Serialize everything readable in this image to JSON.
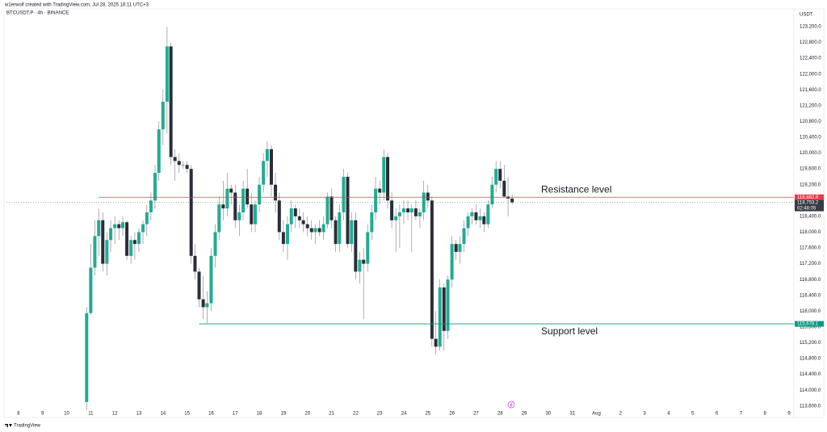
{
  "header": {
    "attribution": "w1erwolf created with TradingView.com, Jul 28, 2025 16:11 UTC+3",
    "symbol": "BTCUSDT.P · 4h · BINANCE",
    "currency": "USDT"
  },
  "footer": {
    "brand": "TradingView"
  },
  "chart_data": {
    "type": "candlestick",
    "x": [
      10.83,
      11,
      11.17,
      11.33,
      11.5,
      11.67,
      11.83,
      12,
      12.17,
      12.33,
      12.5,
      12.67,
      12.83,
      13,
      13.17,
      13.33,
      13.5,
      13.67,
      13.83,
      14,
      14.17,
      14.33,
      14.5,
      14.67,
      14.83,
      15,
      15.17,
      15.33,
      15.5,
      15.67,
      15.83,
      16,
      16.17,
      16.33,
      16.5,
      16.67,
      16.83,
      17,
      17.17,
      17.33,
      17.5,
      17.67,
      17.83,
      18,
      18.17,
      18.33,
      18.5,
      18.67,
      18.83,
      19,
      19.17,
      19.33,
      19.5,
      19.67,
      19.83,
      20,
      20.17,
      20.33,
      20.5,
      20.67,
      20.83,
      21,
      21.17,
      21.33,
      21.5,
      21.67,
      21.83,
      22,
      22.17,
      22.33,
      22.5,
      22.67,
      22.83,
      23,
      23.17,
      23.33,
      23.5,
      23.67,
      23.83,
      24,
      24.17,
      24.33,
      24.5,
      24.67,
      24.83,
      25,
      25.17,
      25.33,
      25.5,
      25.67,
      25.83,
      26,
      26.17,
      26.33,
      26.5,
      26.67,
      26.83,
      27,
      27.17,
      27.33,
      27.5,
      27.67,
      27.83,
      28,
      28.17,
      28.33,
      28.5
    ],
    "open": [
      113700,
      115950,
      117100,
      117900,
      118300,
      117200,
      117800,
      118100,
      118200,
      118100,
      118250,
      117400,
      117800,
      117700,
      118000,
      118200,
      118500,
      118800,
      119500,
      120600,
      121300,
      122700,
      119900,
      119800,
      119700,
      119700,
      119600,
      117400,
      117000,
      116300,
      116100,
      116200,
      117400,
      118000,
      118700,
      118600,
      119100,
      119000,
      118300,
      118500,
      119100,
      118700,
      118200,
      118700,
      119200,
      119800,
      120100,
      119200,
      118800,
      118000,
      117700,
      118200,
      118600,
      118400,
      118300,
      118200,
      118100,
      118000,
      118100,
      118000,
      118200,
      118900,
      118300,
      117700,
      118500,
      119400,
      117700,
      118300,
      117000,
      117300,
      117200,
      118000,
      118500,
      119100,
      119000,
      119900,
      118800,
      118300,
      118400,
      118500,
      118600,
      118500,
      118600,
      118400,
      118500,
      119000,
      118800,
      115300,
      115100,
      116600,
      115500,
      116800,
      117700,
      117500,
      117700,
      118100,
      118400,
      118500,
      118300,
      118400,
      118200,
      118700,
      119200,
      119600,
      119300,
      118900,
      118850
    ],
    "high": [
      116100,
      117700,
      118300,
      118600,
      118500,
      118000,
      118300,
      118400,
      118300,
      118400,
      118300,
      117900,
      118000,
      118100,
      118300,
      118700,
      119000,
      119700,
      120800,
      121600,
      123200,
      122800,
      120100,
      120000,
      119800,
      119800,
      119700,
      117700,
      117100,
      116900,
      116500,
      117600,
      118200,
      118900,
      119300,
      119500,
      119200,
      119200,
      118700,
      119300,
      119600,
      119000,
      118800,
      119400,
      120000,
      120300,
      120200,
      119500,
      119000,
      118300,
      118400,
      118800,
      118700,
      118600,
      118500,
      118400,
      118300,
      118200,
      118300,
      118400,
      119000,
      119100,
      118400,
      118700,
      119600,
      119500,
      118500,
      118500,
      117500,
      117600,
      118200,
      118700,
      119400,
      119300,
      120100,
      120000,
      119000,
      118600,
      118700,
      118800,
      118800,
      118700,
      118800,
      118600,
      119300,
      119200,
      118900,
      116000,
      116800,
      116700,
      116900,
      117900,
      117800,
      117900,
      118300,
      118500,
      118600,
      118700,
      118600,
      118500,
      118800,
      119400,
      119800,
      119800,
      119700,
      119400,
      118950
    ],
    "low": [
      113500,
      115900,
      116900,
      117400,
      117000,
      116900,
      117500,
      117700,
      117800,
      117900,
      117300,
      117200,
      117300,
      117500,
      117700,
      117900,
      118300,
      118600,
      119300,
      120200,
      120500,
      119700,
      119300,
      119500,
      119600,
      119500,
      117200,
      116800,
      116100,
      115800,
      115700,
      116000,
      117100,
      117800,
      118300,
      118400,
      118700,
      118100,
      117900,
      118300,
      118600,
      118000,
      118000,
      118500,
      119000,
      119400,
      118900,
      118500,
      117800,
      117500,
      117300,
      118000,
      118100,
      118100,
      118000,
      117900,
      117800,
      117700,
      117900,
      117800,
      118100,
      118100,
      117500,
      117500,
      118300,
      117600,
      117500,
      116800,
      116700,
      115800,
      117000,
      117800,
      118300,
      118700,
      118800,
      118600,
      118100,
      117500,
      117600,
      118200,
      118300,
      117500,
      118300,
      118100,
      118300,
      118600,
      115100,
      114900,
      115000,
      115000,
      115300,
      116600,
      117300,
      117200,
      117500,
      117900,
      118200,
      118200,
      118100,
      118000,
      118100,
      118600,
      119000,
      119100,
      118900,
      118400,
      118700
    ],
    "close": [
      115950,
      117100,
      117900,
      118300,
      117200,
      117800,
      118100,
      118200,
      118100,
      118250,
      117400,
      117800,
      117700,
      118000,
      118200,
      118500,
      118800,
      119500,
      120600,
      121300,
      122700,
      119900,
      119800,
      119700,
      119700,
      119600,
      117400,
      117000,
      116300,
      116100,
      116200,
      117400,
      118000,
      118700,
      118600,
      119100,
      119000,
      118300,
      118500,
      119100,
      118700,
      118200,
      118700,
      119200,
      119800,
      120100,
      119200,
      118800,
      118000,
      117700,
      118200,
      118600,
      118400,
      118300,
      118200,
      118100,
      118000,
      118100,
      118000,
      118200,
      118900,
      118300,
      117700,
      118500,
      119400,
      117700,
      118300,
      117000,
      117300,
      117200,
      118000,
      118500,
      119100,
      119000,
      119900,
      118800,
      118300,
      118400,
      118500,
      118600,
      118500,
      118600,
      118400,
      118500,
      119000,
      118800,
      115300,
      115100,
      116600,
      115500,
      116800,
      117700,
      117500,
      117700,
      118100,
      118400,
      118500,
      118300,
      118400,
      118200,
      118700,
      119200,
      119600,
      119300,
      118900,
      118850,
      118753.2
    ],
    "up_color": "#22ab94",
    "down_color": "#2a2e39",
    "xlim": [
      7.5,
      40.2
    ],
    "xticks": [
      8,
      9,
      10,
      11,
      12,
      13,
      14,
      15,
      16,
      17,
      18,
      19,
      20,
      21,
      22,
      23,
      24,
      25,
      26,
      27,
      28,
      29,
      30,
      31,
      {
        "value": 32,
        "label": "Aug"
      },
      {
        "value": 33,
        "label": "2"
      },
      {
        "value": 34,
        "label": "3"
      },
      {
        "value": 35,
        "label": "4"
      },
      {
        "value": 36,
        "label": "5"
      },
      {
        "value": 37,
        "label": "6"
      },
      {
        "value": 38,
        "label": "7"
      },
      {
        "value": 39,
        "label": "8"
      },
      {
        "value": 40,
        "label": "9"
      }
    ],
    "ylim": [
      113350,
      123670
    ],
    "yticks": [
      {
        "value": 113600,
        "label": "113,600.0"
      },
      {
        "value": 114000,
        "label": "114,000.0"
      },
      {
        "value": 114400,
        "label": "114,400.0"
      },
      {
        "value": 114800,
        "label": "114,800.0"
      },
      {
        "value": 115200,
        "label": "115,200.0"
      },
      {
        "value": 115600,
        "label": "115,600.0"
      },
      {
        "value": 116000,
        "label": "116,000.0"
      },
      {
        "value": 116400,
        "label": "116,400.0"
      },
      {
        "value": 116800,
        "label": "116,800.0"
      },
      {
        "value": 117200,
        "label": "117,200.0"
      },
      {
        "value": 117600,
        "label": "117,600.0"
      },
      {
        "value": 118000,
        "label": "118,000.0"
      },
      {
        "value": 118400,
        "label": "118,400.0"
      },
      {
        "value": 118800,
        "label": "118,800.0"
      },
      {
        "value": 119200,
        "label": "119,200.0"
      },
      {
        "value": 119600,
        "label": "119,600.0"
      },
      {
        "value": 120000,
        "label": "120,000.0"
      },
      {
        "value": 120400,
        "label": "120,400.0"
      },
      {
        "value": 120800,
        "label": "120,800.0"
      },
      {
        "value": 121200,
        "label": "121,200.0"
      },
      {
        "value": 121600,
        "label": "121,600.0"
      },
      {
        "value": 122000,
        "label": "122,000.0"
      },
      {
        "value": 122400,
        "label": "122,400.0"
      },
      {
        "value": 122800,
        "label": "122,800.0"
      },
      {
        "value": 123200,
        "label": "123,200.0"
      }
    ],
    "grid": false,
    "hlines": [
      {
        "value": 118882.8,
        "label": "118,882.8",
        "start": 11.33,
        "color": "#f23645",
        "text": "Resistance level",
        "text_position": "above"
      },
      {
        "value": 115678.1,
        "label": "115,678.1",
        "start": 15.5,
        "color": "#089981",
        "text": "Support level",
        "text_position": "below"
      }
    ],
    "last_price": {
      "value": 118753.2,
      "label": "118,753.2",
      "countdown": "02:48:05",
      "color": "#363a45"
    }
  }
}
